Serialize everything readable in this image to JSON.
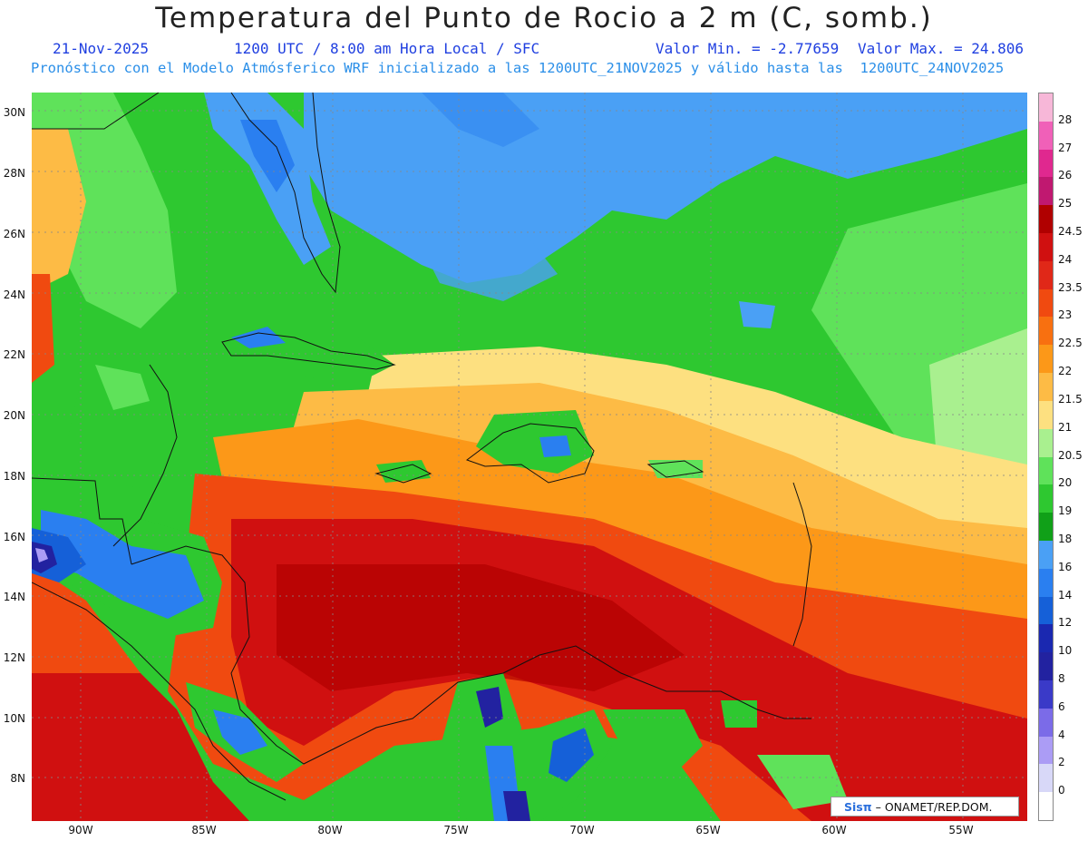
{
  "header": {
    "title": "Temperatura del Punto de Rocio a 2 m (C, somb.)",
    "date": "21-Nov-2025",
    "time_info": "1200 UTC / 8:00 am Hora Local / SFC",
    "min_value": "Valor Min. = -2.77659",
    "max_value": "Valor Max. = 24.806",
    "forecast_info": "Pronóstico con el Modelo Atmósferico WRF inicializado a las 1200UTC_21NOV2025 y válido hasta las  1200UTC_24NOV2025"
  },
  "axes": {
    "lat_labels": [
      "30N",
      "28N",
      "26N",
      "24N",
      "22N",
      "20N",
      "18N",
      "16N",
      "14N",
      "12N",
      "10N",
      "8N"
    ],
    "lon_labels": [
      "90W",
      "85W",
      "80W",
      "75W",
      "70W",
      "65W",
      "60W",
      "55W"
    ]
  },
  "colorbar": {
    "labels": [
      "28",
      "27",
      "26",
      "25",
      "24.5",
      "24",
      "23.5",
      "23",
      "22.5",
      "22",
      "21.5",
      "21",
      "20.5",
      "20",
      "19",
      "18",
      "16",
      "14",
      "12",
      "10",
      "8",
      "6",
      "4",
      "2",
      "0"
    ],
    "colors": [
      "#f7b7d8",
      "#f060b8",
      "#e0288f",
      "#c01870",
      "#b00000",
      "#d01010",
      "#e02818",
      "#f04a10",
      "#f87010",
      "#fc9818",
      "#fdbb45",
      "#fde080",
      "#a9f08f",
      "#5fe25a",
      "#2ec830",
      "#10a018",
      "#4aa0f5",
      "#2a7ff0",
      "#1560d8",
      "#1a28b0",
      "#2222a0",
      "#3a3ac8",
      "#7b6be8",
      "#ab9cf5",
      "#d8d8f8",
      "#ffffff"
    ]
  },
  "credit": {
    "logo": "Sisπ",
    "text": "– ONAMET/REP.DOM."
  }
}
